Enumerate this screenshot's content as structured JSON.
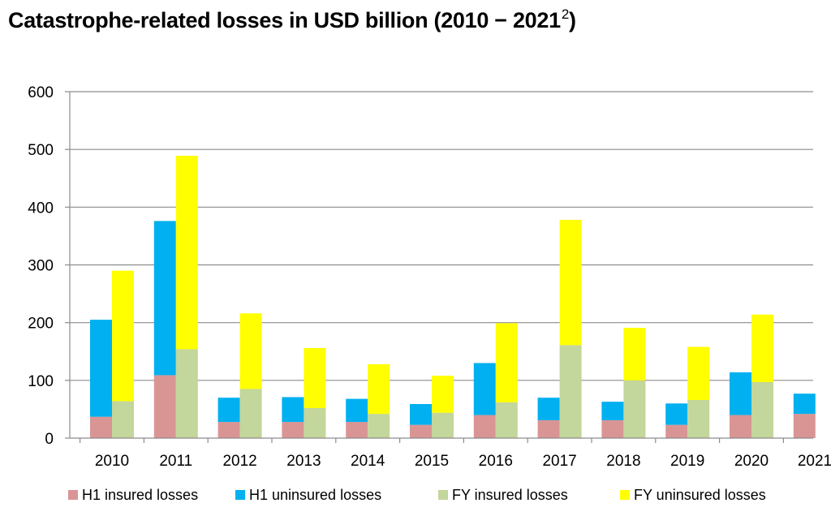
{
  "title_main": "Catastrophe-related losses in USD billion (2010 − 2021",
  "title_sup": "2",
  "title_end": ")",
  "chart_data": {
    "type": "bar",
    "stacked": true,
    "categories": [
      "2010",
      "2011",
      "2012",
      "2013",
      "2014",
      "2015",
      "2016",
      "2017",
      "2018",
      "2019",
      "2020",
      "2021"
    ],
    "ylim": [
      0,
      600
    ],
    "yticks": [
      "0",
      "100",
      "200",
      "300",
      "400",
      "500",
      "600"
    ],
    "grid": true,
    "legend_position": "bottom",
    "groups": [
      {
        "stack": "H1",
        "series": [
          {
            "name": "H1 insured losses",
            "color": "#d99594",
            "values": [
              37,
              109,
              28,
              28,
              28,
              23,
              40,
              31,
              31,
              23,
              40,
              42
            ]
          },
          {
            "name": "H1 uninsured losses",
            "color": "#00b0f0",
            "values": [
              168,
              267,
              42,
              43,
              40,
              36,
              90,
              39,
              32,
              37,
              74,
              35
            ]
          }
        ]
      },
      {
        "stack": "FY",
        "series": [
          {
            "name": "FY insured losses",
            "color": "#c3d69b",
            "values": [
              64,
              154,
              85,
              52,
              42,
              44,
              62,
              161,
              100,
              66,
              97,
              null
            ]
          },
          {
            "name": "FY uninsured losses",
            "color": "#ffff00",
            "values": [
              226,
              335,
              131,
              104,
              86,
              64,
              137,
              217,
              91,
              92,
              117,
              null
            ]
          }
        ]
      }
    ],
    "legend": [
      {
        "label": "H1 insured losses",
        "color": "#d99594"
      },
      {
        "label": "H1 uninsured losses",
        "color": "#00b0f0"
      },
      {
        "label": "FY insured losses",
        "color": "#c3d69b"
      },
      {
        "label": "FY uninsured losses",
        "color": "#ffff00"
      }
    ]
  }
}
